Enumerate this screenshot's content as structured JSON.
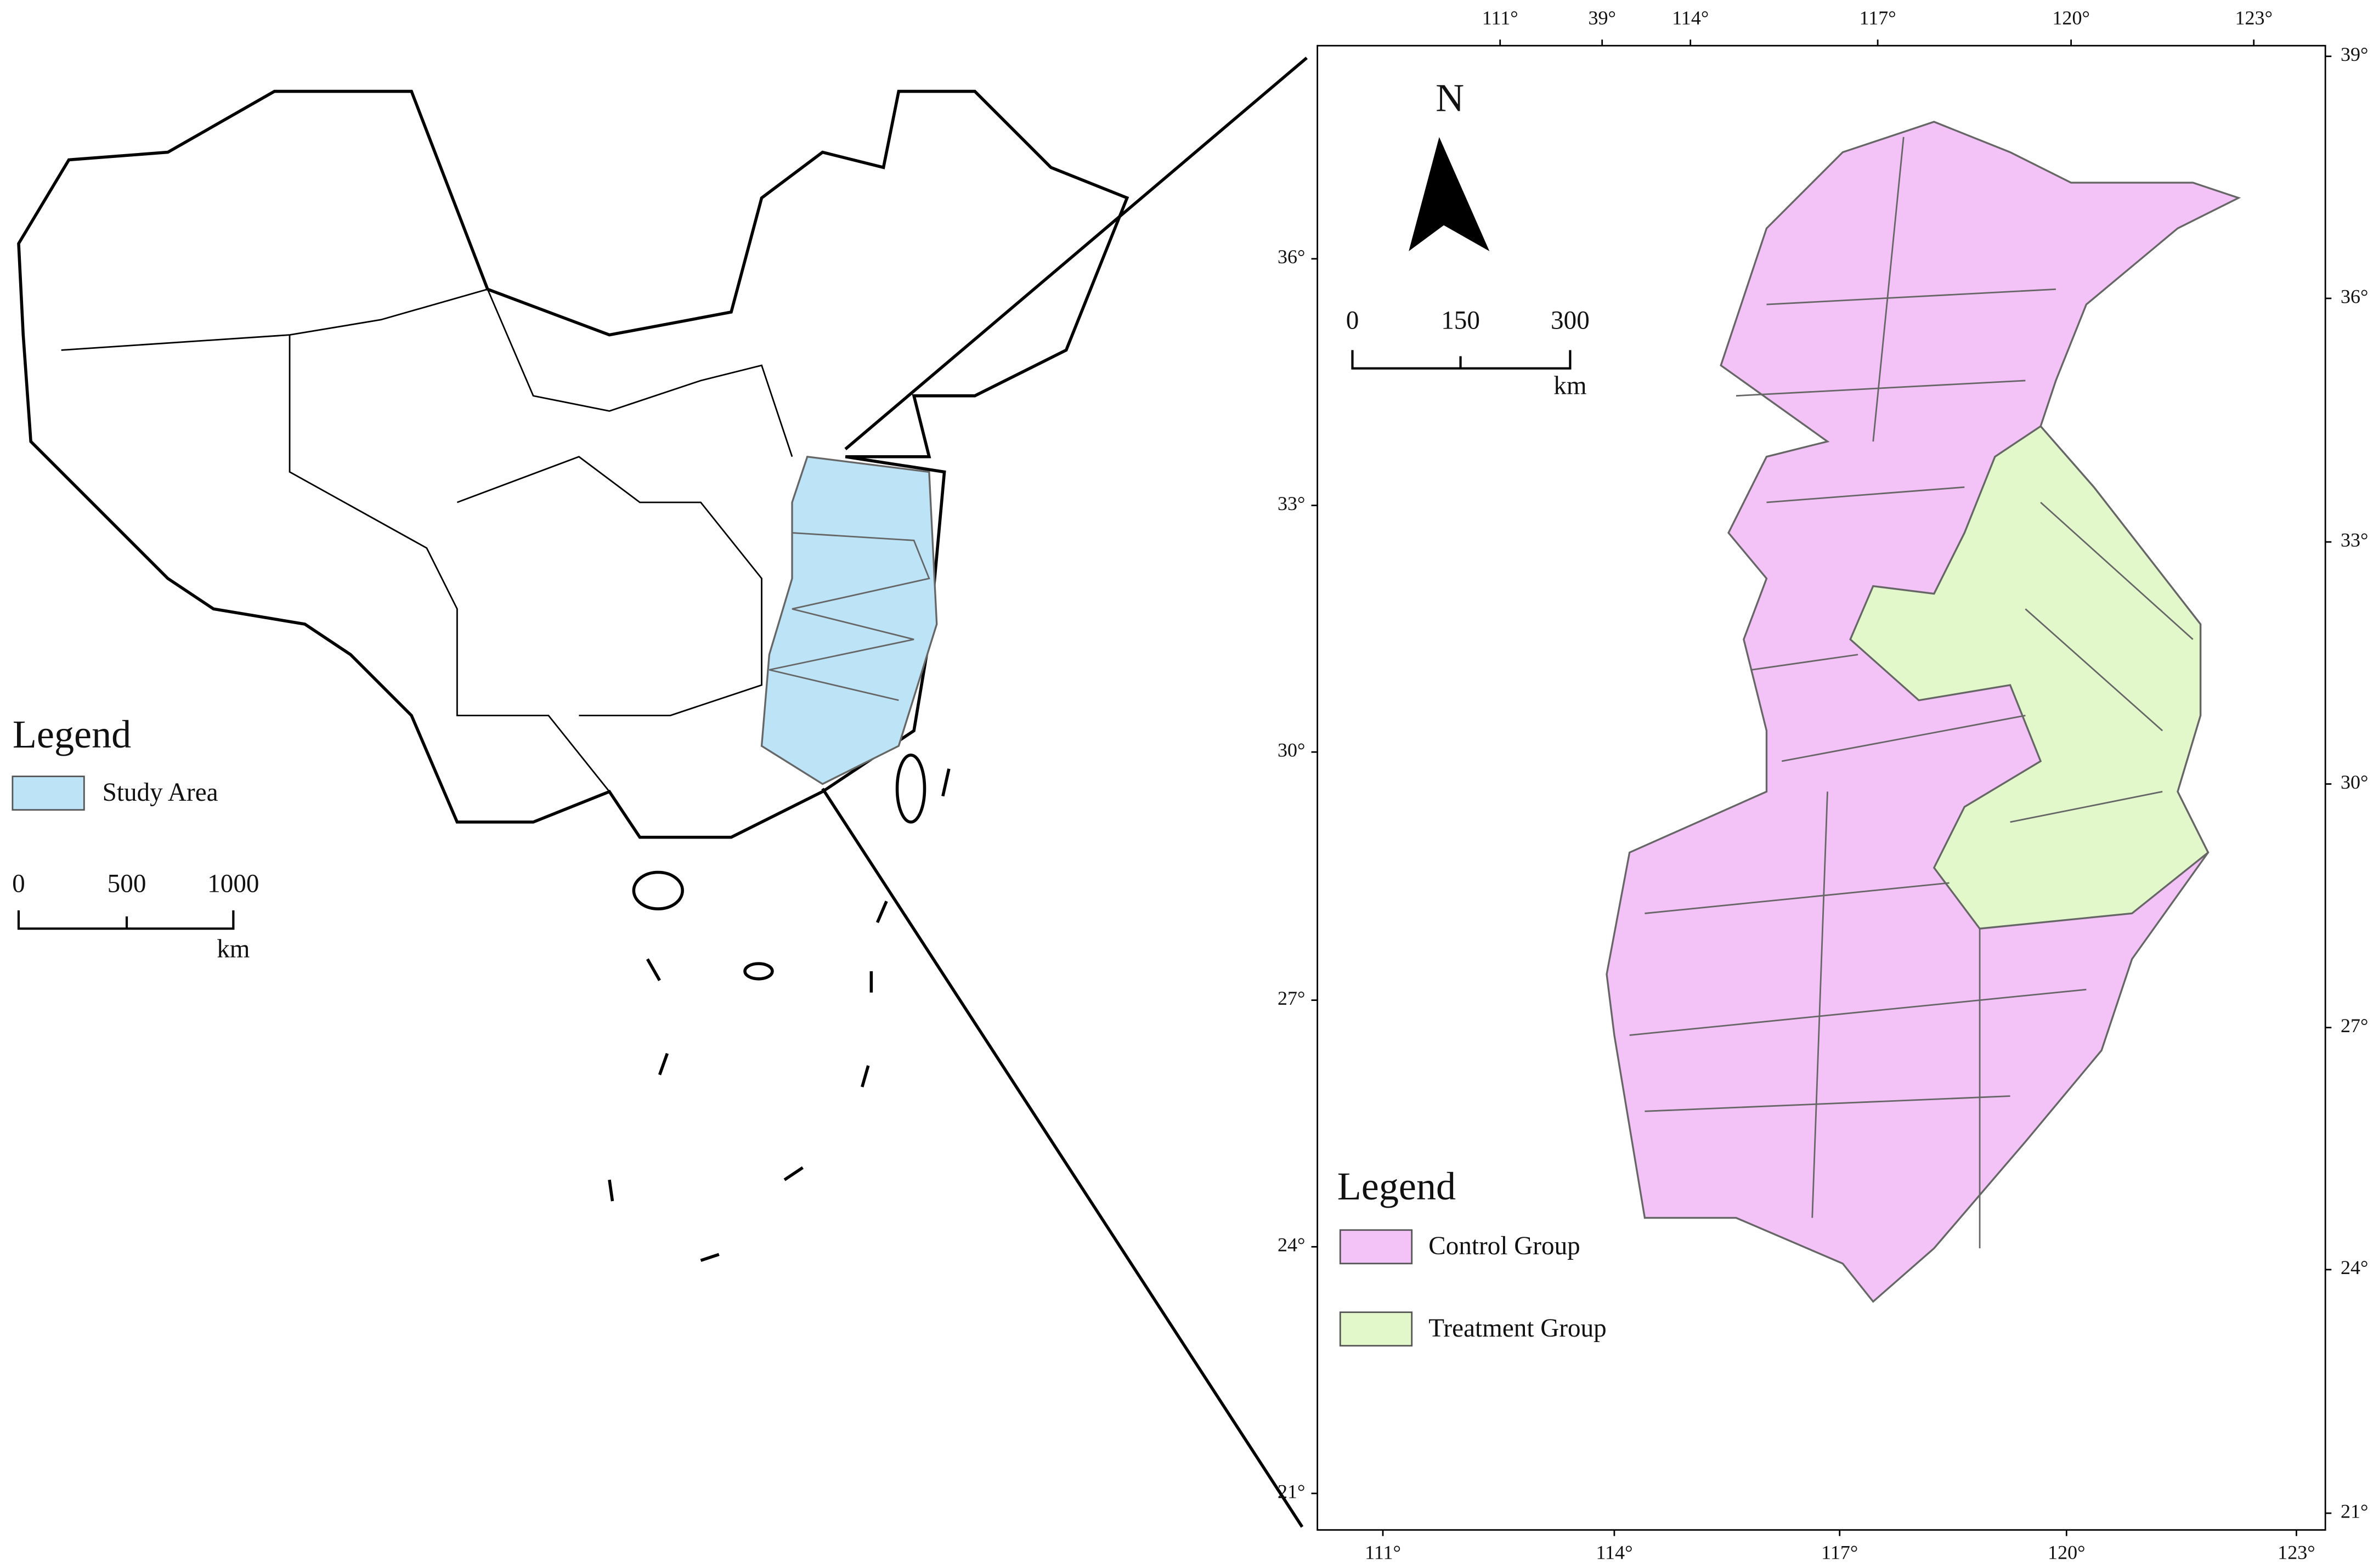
{
  "overview_map": {
    "legend": {
      "title": "Legend",
      "items": [
        "Study Area"
      ]
    },
    "scale_bar": {
      "labels": [
        "0",
        "500",
        "1000"
      ],
      "unit": "km"
    }
  },
  "detail_map": {
    "north_arrow": "N",
    "scale_bar": {
      "labels": [
        "0",
        "150",
        "300"
      ],
      "unit": "km"
    },
    "legend": {
      "title": "Legend",
      "items": [
        "Control Group",
        "Treatment Group"
      ]
    },
    "top_ticks": [
      "111°",
      "39°",
      "114°",
      "117°",
      "120°",
      "123°"
    ],
    "bottom_ticks": [
      "111°",
      "114°",
      "117°",
      "120°",
      "123°"
    ],
    "left_ticks": [
      "36°",
      "33°",
      "30°",
      "27°",
      "24°",
      "21°"
    ],
    "right_ticks": [
      "39°",
      "36°",
      "33°",
      "30°",
      "27°",
      "24°",
      "21°"
    ]
  }
}
